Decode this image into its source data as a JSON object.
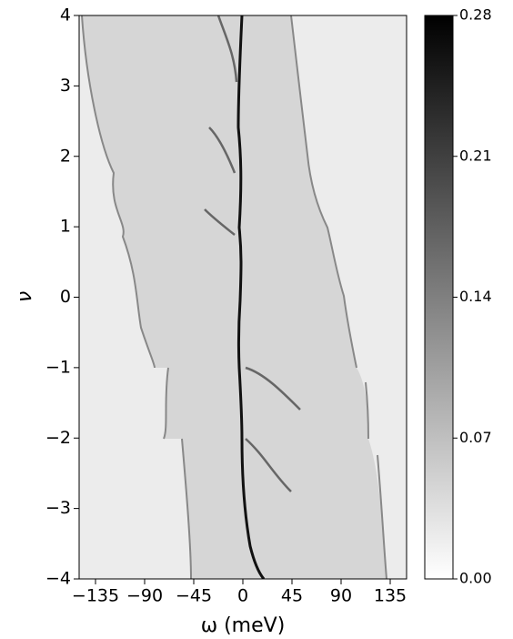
{
  "chart_data": {
    "type": "heatmap",
    "x_label": "ω (meV)",
    "y_label": "ν",
    "xlim": [
      -150,
      150
    ],
    "xticks": [
      {
        "value": -135,
        "label": "−135"
      },
      {
        "value": -90,
        "label": "−90"
      },
      {
        "value": -45,
        "label": "−45"
      },
      0,
      45,
      90,
      135
    ],
    "ylim": [
      -4,
      4
    ],
    "yticks": [
      {
        "value": -4,
        "label": "−4"
      },
      {
        "value": -3,
        "label": "−3"
      },
      {
        "value": -2,
        "label": "−2"
      },
      {
        "value": -1,
        "label": "−1"
      },
      0,
      1,
      2,
      3,
      4
    ],
    "colormap": "Greys",
    "clim": [
      0,
      0.28
    ],
    "cticks": [
      {
        "value": 0,
        "label": "0.00"
      },
      0.07,
      0.14,
      0.21,
      0.28
    ]
  }
}
